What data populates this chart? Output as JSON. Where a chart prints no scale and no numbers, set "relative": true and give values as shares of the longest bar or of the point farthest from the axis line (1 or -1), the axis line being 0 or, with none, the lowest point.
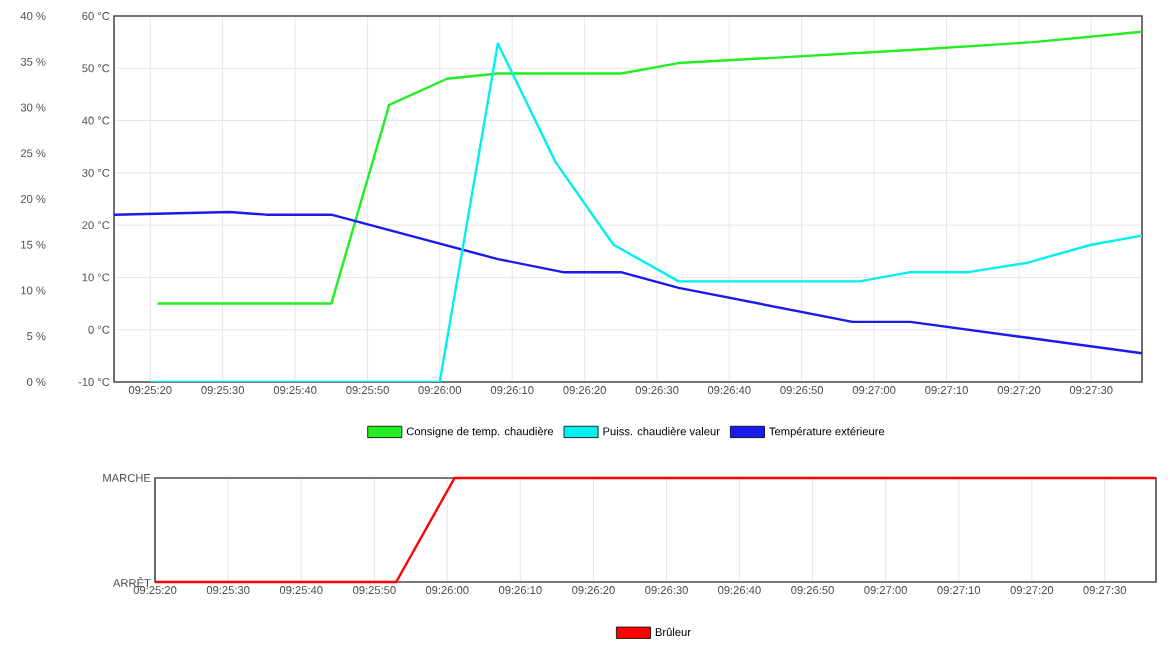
{
  "chart_data": [
    {
      "type": "line",
      "marker": "none",
      "line_style": "solid",
      "grid": true,
      "legend": "bottom",
      "xlim": [
        9.42083,
        9.46028
      ],
      "ylim": [
        -10,
        60
      ],
      "y2lim": [
        0,
        40
      ],
      "xticks": [
        {
          "value": 9.42222,
          "label": "09:25:20"
        },
        {
          "value": 9.425,
          "label": "09:25:30"
        },
        {
          "value": 9.42778,
          "label": "09:25:40"
        },
        {
          "value": 9.43056,
          "label": "09:25:50"
        },
        {
          "value": 9.43333,
          "label": "09:26:00"
        },
        {
          "value": 9.43611,
          "label": "09:26:10"
        },
        {
          "value": 9.43889,
          "label": "09:26:20"
        },
        {
          "value": 9.44167,
          "label": "09:26:30"
        },
        {
          "value": 9.44444,
          "label": "09:26:40"
        },
        {
          "value": 9.44722,
          "label": "09:26:50"
        },
        {
          "value": 9.45,
          "label": "09:27:00"
        },
        {
          "value": 9.45278,
          "label": "09:27:10"
        },
        {
          "value": 9.45556,
          "label": "09:27:20"
        },
        {
          "value": 9.45833,
          "label": "09:27:30"
        }
      ],
      "yticks": [
        {
          "value": -10,
          "label": "-10 °C"
        },
        {
          "value": 0,
          "label": "0 °C"
        },
        {
          "value": 10,
          "label": "10 °C"
        },
        {
          "value": 20,
          "label": "20 °C"
        },
        {
          "value": 30,
          "label": "30 °C"
        },
        {
          "value": 40,
          "label": "40 °C"
        },
        {
          "value": 50,
          "label": "50 °C"
        },
        {
          "value": 60,
          "label": "60 °C"
        }
      ],
      "y2ticks": [
        {
          "value": 0,
          "label": "0 %"
        },
        {
          "value": 5,
          "label": "5 %"
        },
        {
          "value": 10,
          "label": "10 %"
        },
        {
          "value": 15,
          "label": "15 %"
        },
        {
          "value": 20,
          "label": "20 %"
        },
        {
          "value": 25,
          "label": "25 %"
        },
        {
          "value": 30,
          "label": "30 %"
        },
        {
          "value": 35,
          "label": "35 %"
        },
        {
          "value": 40,
          "label": "40 %"
        }
      ],
      "series": [
        {
          "name": "Consigne de temp. chaudière",
          "color": "#22ee22",
          "x": [
            9.4225,
            9.42917,
            9.43139,
            9.43361,
            9.43556,
            9.44028,
            9.4425,
            9.44611,
            9.45139,
            9.45611,
            9.46028
          ],
          "values": [
            5,
            5,
            43,
            48,
            49,
            49,
            51,
            52,
            53.5,
            55,
            57
          ]
        },
        {
          "name": "Puiss. chaudière valeur",
          "color": "#00f0f0",
          "axis": "y2",
          "x": [
            9.42222,
            9.43333,
            9.43556,
            9.43778,
            9.44,
            9.4425,
            9.44944,
            9.45139,
            9.45361,
            9.45583,
            9.45833,
            9.46028
          ],
          "values": [
            0,
            0,
            37,
            24,
            15,
            11,
            11,
            12,
            12,
            13,
            15,
            16
          ]
        },
        {
          "name": "Température extérieure",
          "color": "#1a1aee",
          "x": [
            9.42083,
            9.42528,
            9.42667,
            9.42917,
            9.43556,
            9.43806,
            9.44028,
            9.4425,
            9.44917,
            9.45139,
            9.45583,
            9.46028
          ],
          "values": [
            22,
            22.5,
            22,
            22,
            13.5,
            11,
            11,
            8,
            1.5,
            1.5,
            -1.5,
            -4.5
          ]
        }
      ]
    },
    {
      "type": "line",
      "marker": "none",
      "line_style": "solid",
      "grid": "x",
      "legend": "bottom",
      "relative": true,
      "xlim": [
        9.42222,
        9.46028
      ],
      "xticks": [
        {
          "value": 9.42222,
          "label": "09:25:20"
        },
        {
          "value": 9.425,
          "label": "09:25:30"
        },
        {
          "value": 9.42778,
          "label": "09:25:40"
        },
        {
          "value": 9.43056,
          "label": "09:25:50"
        },
        {
          "value": 9.43333,
          "label": "09:26:00"
        },
        {
          "value": 9.43611,
          "label": "09:26:10"
        },
        {
          "value": 9.43889,
          "label": "09:26:20"
        },
        {
          "value": 9.44167,
          "label": "09:26:30"
        },
        {
          "value": 9.44444,
          "label": "09:26:40"
        },
        {
          "value": 9.44722,
          "label": "09:26:50"
        },
        {
          "value": 9.45,
          "label": "09:27:00"
        },
        {
          "value": 9.45278,
          "label": "09:27:10"
        },
        {
          "value": 9.45556,
          "label": "09:27:20"
        },
        {
          "value": 9.45833,
          "label": "09:27:30"
        }
      ],
      "annotations": [
        "ARRÊT",
        "MARCHE"
      ],
      "series": [
        {
          "name": "Brûleur",
          "color": "#ff0000",
          "x": [
            9.42222,
            9.43139,
            9.43361,
            9.46028
          ],
          "values": [
            0,
            0,
            1,
            1
          ]
        }
      ]
    }
  ]
}
